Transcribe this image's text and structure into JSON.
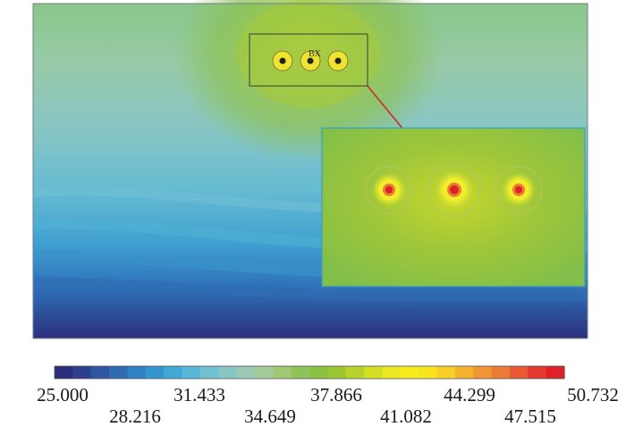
{
  "figure": {
    "annotation": "BX"
  },
  "colorbar": {
    "colors": [
      "#2a2c7c",
      "#2d3f8e",
      "#2f56a2",
      "#2f6bb3",
      "#2f83c4",
      "#3596cf",
      "#41a8d6",
      "#58b7d6",
      "#72c1d1",
      "#88c6c5",
      "#9bc9b4",
      "#a3ca98",
      "#9fc877",
      "#8fc35a",
      "#8ac143",
      "#9cc733",
      "#b7d22b",
      "#d3de24",
      "#eae821",
      "#f6ec1c",
      "#f9e51d",
      "#f7cf27",
      "#f4b32f",
      "#f09634",
      "#ec7a36",
      "#e85a34",
      "#e33a30",
      "#de2228"
    ],
    "labels_upper": [
      "25.000",
      "31.433",
      "37.866",
      "44.299",
      "50.732"
    ],
    "labels_lower": [
      "28.216",
      "34.649",
      "41.082",
      "47.515"
    ]
  }
}
